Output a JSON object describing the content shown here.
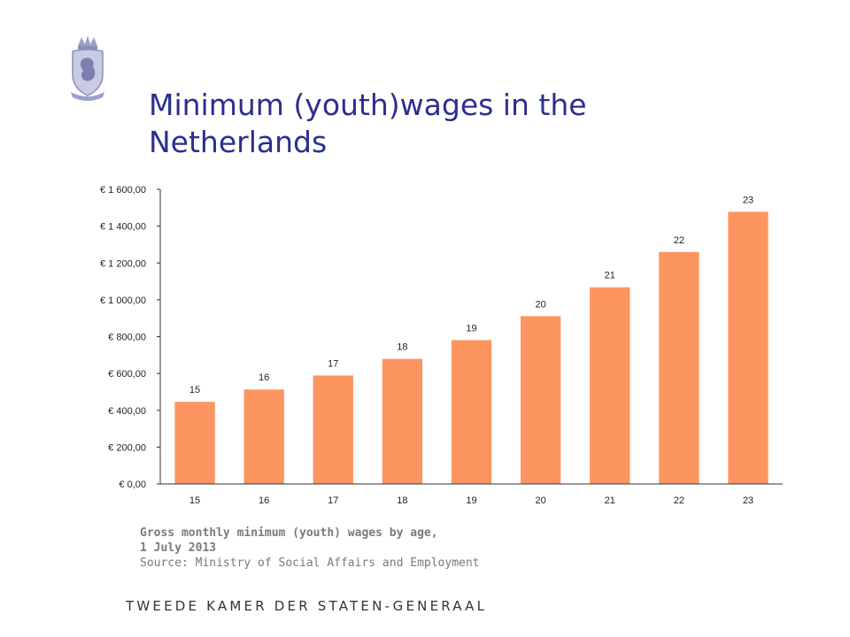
{
  "header": {
    "title_line1": "Minimum (youth)wages in the",
    "title_line2": "Netherlands"
  },
  "caption": {
    "line1": "Gross monthly minimum (youth) wages by age,",
    "line2": "1 July 2013",
    "source": "Source: Ministry of Social Affairs and Employment"
  },
  "footer": {
    "text": "TWEEDE KAMER DER STATEN-GENERAAL"
  },
  "colors": {
    "title": "#2b2f8f",
    "bar": "#fd9560",
    "axis": "#333333"
  },
  "chart_data": {
    "type": "bar",
    "categories": [
      "15",
      "16",
      "17",
      "18",
      "19",
      "20",
      "21",
      "22",
      "23"
    ],
    "values": [
      446,
      513,
      589,
      679,
      781,
      911,
      1068,
      1260,
      1478
    ],
    "data_labels": [
      "15",
      "16",
      "17",
      "18",
      "19",
      "20",
      "21",
      "22",
      "23"
    ],
    "yticks": [
      0,
      200,
      400,
      600,
      800,
      1000,
      1200,
      1400,
      1600
    ],
    "ytick_labels": [
      "€ 0,00",
      "€ 200,00",
      "€ 400,00",
      "€ 600,00",
      "€ 800,00",
      "€ 1 000,00",
      "€ 1 200,00",
      "€ 1 400,00",
      "€ 1 600,00"
    ],
    "ylim": [
      0,
      1600
    ],
    "title": "",
    "xlabel": "",
    "ylabel": "",
    "grid": false,
    "legend": "none"
  }
}
